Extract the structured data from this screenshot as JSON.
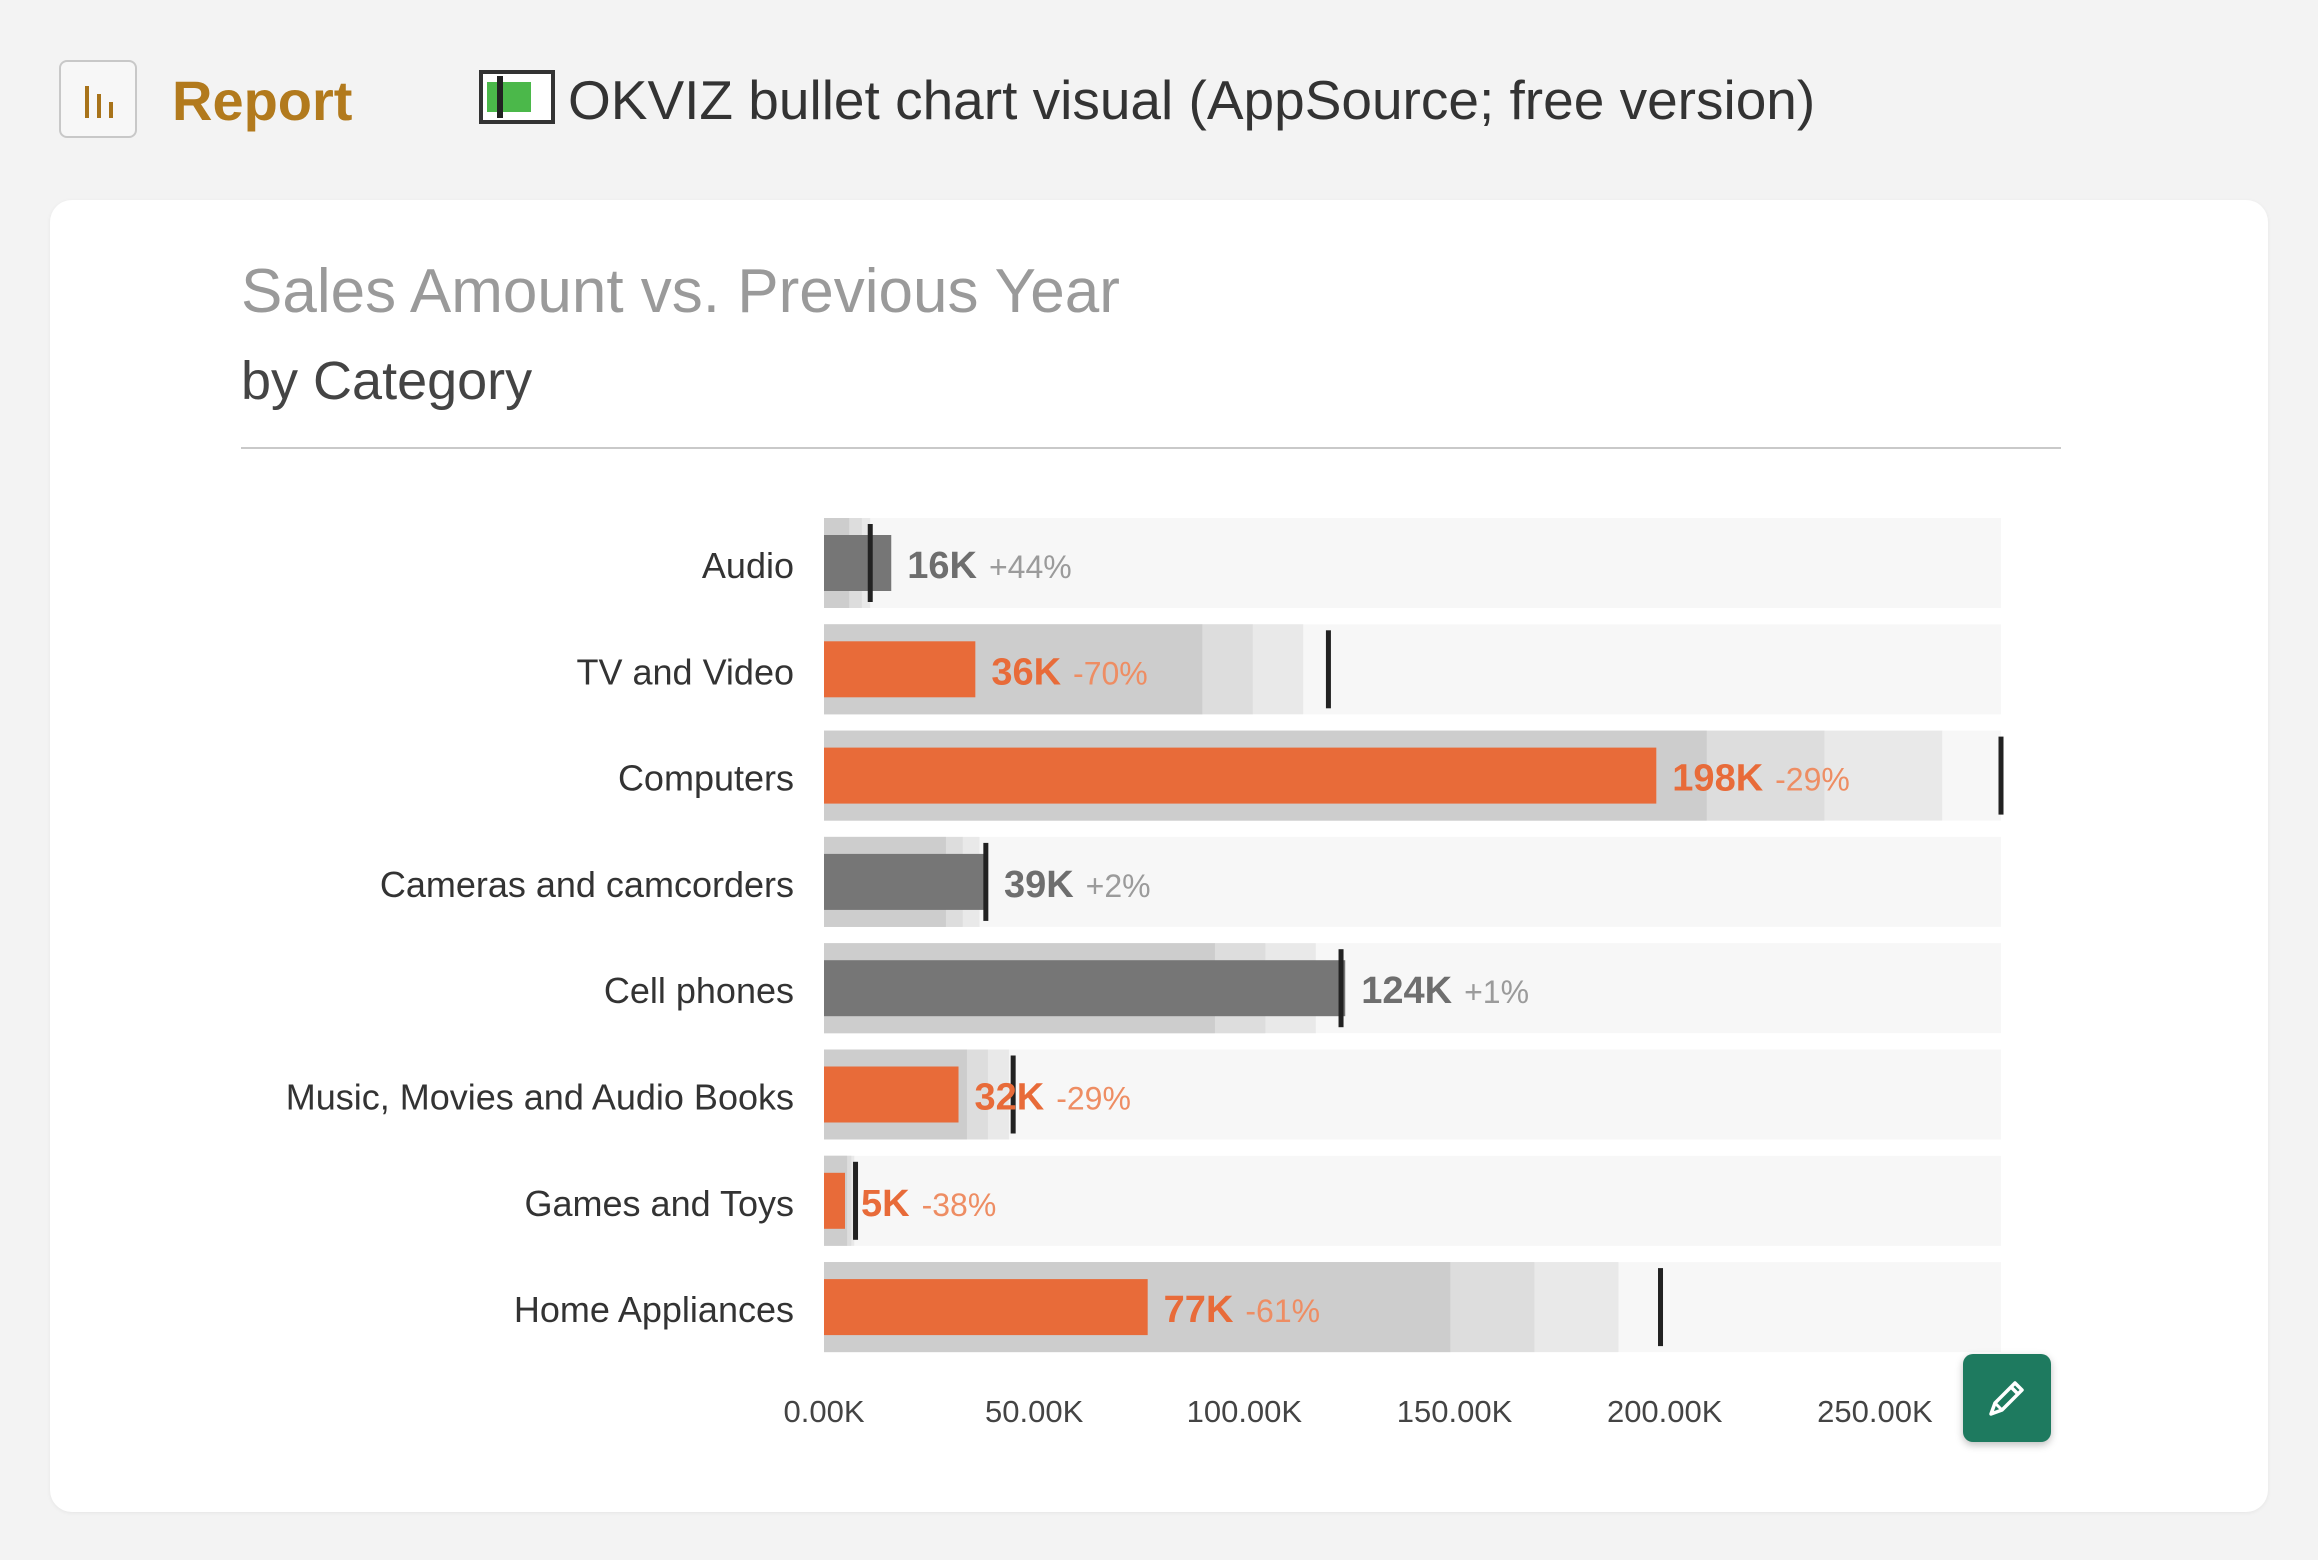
{
  "header": {
    "report_label": "Report",
    "report_icon": "bar-chart-icon",
    "visual_icon": "bullet-chart-icon",
    "visual_title": "OKVIZ bullet chart visual (AppSource; free version)"
  },
  "chart": {
    "title": "Sales Amount vs. Previous Year",
    "subtitle": "by Category",
    "edit_icon": "pencil-icon"
  },
  "chart_data": {
    "type": "bullet",
    "title": "Sales Amount vs. Previous Year",
    "subtitle": "by Category",
    "xlim": [
      0,
      280000
    ],
    "ticks": [
      0,
      50000,
      100000,
      150000,
      200000,
      250000
    ],
    "tick_labels": [
      "0.00K",
      "50.00K",
      "100.00K",
      "150.00K",
      "200.00K",
      "250.00K"
    ],
    "colors": {
      "below_target": "#e86b39",
      "on_target": "#767676",
      "band_1": "#cdcdcd",
      "band_2": "#dddddd",
      "band_3": "#e9e9e9",
      "background": "#f7f7f7",
      "marker": "#222222"
    },
    "categories": [
      {
        "name": "Audio",
        "value": 16000,
        "target": 11000,
        "bands": [
          6000,
          9000,
          11000
        ],
        "label": "16K",
        "delta": "+44%",
        "status": "above"
      },
      {
        "name": "TV and Video",
        "value": 36000,
        "target": 120000,
        "bands": [
          90000,
          102000,
          114000
        ],
        "label": "36K",
        "delta": "-70%",
        "status": "below"
      },
      {
        "name": "Computers",
        "value": 198000,
        "target": 280000,
        "bands": [
          210000,
          238000,
          266000
        ],
        "label": "198K",
        "delta": "-29%",
        "status": "below"
      },
      {
        "name": "Cameras and camcorders",
        "value": 39000,
        "target": 38500,
        "bands": [
          29000,
          33000,
          37000
        ],
        "label": "39K",
        "delta": "+2%",
        "status": "above"
      },
      {
        "name": "Cell phones",
        "value": 124000,
        "target": 123000,
        "bands": [
          93000,
          105000,
          117000
        ],
        "label": "124K",
        "delta": "+1%",
        "status": "above"
      },
      {
        "name": "Music, Movies and Audio Books",
        "value": 32000,
        "target": 45000,
        "bands": [
          34000,
          39000,
          44000
        ],
        "label": "32K",
        "delta": "-29%",
        "status": "below"
      },
      {
        "name": "Games and Toys",
        "value": 5000,
        "target": 7500,
        "bands": [
          5500,
          6500,
          7200
        ],
        "label": "5K",
        "delta": "-38%",
        "status": "below"
      },
      {
        "name": "Home Appliances",
        "value": 77000,
        "target": 199000,
        "bands": [
          149000,
          169000,
          189000
        ],
        "label": "77K",
        "delta": "-61%",
        "status": "below"
      }
    ]
  }
}
